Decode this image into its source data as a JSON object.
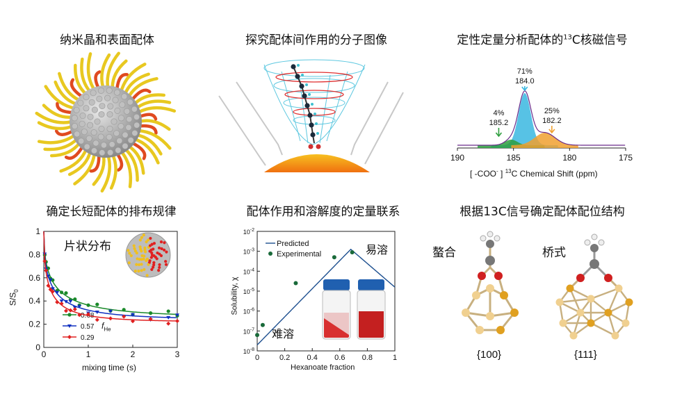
{
  "titles": {
    "p1": "纳米晶和表面配体",
    "p2": "探究配体间作用的分子图像",
    "p3_main": "定性定量分析配体的",
    "p3_sup": "13",
    "p3_tail": "C核磁信号",
    "p4": "确定长短配体的排布规律",
    "p5": "配体作用和溶解度的定量联系",
    "p6": "根据13C信号确定配体配位结构"
  },
  "nmr": {
    "peaks": [
      {
        "percent": "71%",
        "shift": "184.0",
        "color": "#3ab7e0"
      },
      {
        "percent": "4%",
        "shift": "185.2",
        "color": "#2e9e3e"
      },
      {
        "percent": "25%",
        "shift": "182.2",
        "color": "#f0a030"
      }
    ],
    "ticks": [
      "190",
      "185",
      "180",
      "175"
    ],
    "xlabel_a": "[ -COO",
    "xlabel_sup_minus": "-",
    "xlabel_b": " ] ",
    "xlabel_sup13": "13",
    "xlabel_c": "C Chemical Shift (ppm)"
  },
  "mixing": {
    "annotation": "片状分布",
    "ylabel_main": "S/S",
    "ylabel_sub": "0",
    "xlabel": "mixing time (s)",
    "xticks": [
      "0",
      "1",
      "2",
      "3"
    ],
    "yticks": [
      "0",
      "0.2",
      "0.4",
      "0.6",
      "0.8",
      "1"
    ],
    "legend_var_main": "f",
    "legend_var_sub": "He",
    "series": [
      {
        "name": "0.68",
        "color": "#1a8a2a",
        "marker": "circle"
      },
      {
        "name": "0.57",
        "color": "#1030c0",
        "marker": "triangle"
      },
      {
        "name": "0.29",
        "color": "#e02020",
        "marker": "diamond"
      }
    ]
  },
  "solubility": {
    "legend_predicted": "Predicted",
    "legend_experimental": "Experimental",
    "ylabel": "Solubility, χ",
    "xlabel": "Hexanoate fraction",
    "label_high": "易溶",
    "label_low": "难溶",
    "xticks": [
      "0",
      "0.2",
      "0.4",
      "0.6",
      "0.8",
      "1"
    ],
    "yticks_exp": [
      "-8",
      "-7",
      "-6",
      "-5",
      "-4",
      "-3",
      "-2"
    ]
  },
  "coordination": {
    "chelate_label": "螯合",
    "bridge_label": "桥式",
    "facet_100": "{100}",
    "facet_111": "{111}"
  }
}
